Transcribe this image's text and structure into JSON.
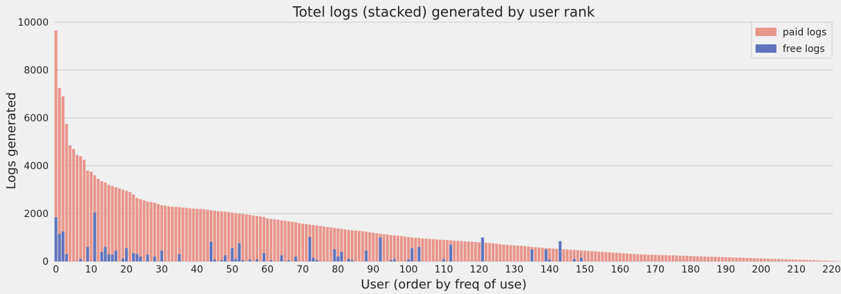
{
  "chart_data": {
    "type": "bar",
    "stacked": true,
    "title": "Totel logs (stacked) generated by user rank",
    "xlabel": "User (order by freq of use)",
    "ylabel": "Logs generated",
    "xlim": [
      0,
      220
    ],
    "ylim": [
      0,
      10000
    ],
    "xticks": [
      0,
      10,
      20,
      30,
      40,
      50,
      60,
      70,
      80,
      90,
      100,
      110,
      120,
      130,
      140,
      150,
      160,
      170,
      180,
      190,
      200,
      210,
      220
    ],
    "yticks": [
      0,
      2000,
      4000,
      6000,
      8000,
      10000
    ],
    "grid": true,
    "legend_position": "top-right",
    "colors": {
      "paid": "#e8958a",
      "free": "#5f74bd"
    },
    "series": [
      {
        "key": "paid",
        "name": "paid logs",
        "totals": [
          9650,
          7250,
          6900,
          5750,
          4850,
          4700,
          4450,
          4400,
          4250,
          3800,
          3750,
          3600,
          3450,
          3350,
          3300,
          3200,
          3150,
          3100,
          3050,
          3000,
          2950,
          2900,
          2800,
          2650,
          2600,
          2550,
          2500,
          2480,
          2450,
          2400,
          2350,
          2330,
          2300,
          2290,
          2280,
          2270,
          2250,
          2240,
          2220,
          2210,
          2200,
          2190,
          2180,
          2160,
          2140,
          2120,
          2100,
          2090,
          2080,
          2060,
          2040,
          2020,
          2000,
          1980,
          1960,
          1940,
          1920,
          1900,
          1880,
          1860,
          1800,
          1780,
          1760,
          1740,
          1720,
          1700,
          1680,
          1660,
          1640,
          1600,
          1580,
          1560,
          1540,
          1520,
          1500,
          1480,
          1460,
          1440,
          1420,
          1400,
          1380,
          1360,
          1340,
          1320,
          1300,
          1290,
          1280,
          1260,
          1240,
          1220,
          1200,
          1180,
          1160,
          1140,
          1120,
          1100,
          1090,
          1080,
          1060,
          1040,
          1020,
          1000,
          990,
          980,
          960,
          950,
          940,
          930,
          920,
          910,
          900,
          890,
          880,
          870,
          860,
          850,
          840,
          830,
          820,
          810,
          800,
          790,
          780,
          770,
          760,
          740,
          720,
          700,
          690,
          680,
          670,
          660,
          650,
          640,
          620,
          600,
          590,
          580,
          570,
          560,
          550,
          540,
          530,
          520,
          510,
          500,
          490,
          480,
          470,
          460,
          450,
          440,
          430,
          420,
          410,
          400,
          390,
          380,
          370,
          360,
          350,
          340,
          330,
          320,
          310,
          300,
          295,
          290,
          285,
          280,
          275,
          270,
          265,
          260,
          255,
          250,
          245,
          240,
          235,
          230,
          225,
          220,
          215,
          210,
          205,
          200,
          195,
          190,
          185,
          180,
          175,
          170,
          165,
          160,
          155,
          150,
          145,
          140,
          135,
          130,
          125,
          120,
          115,
          110,
          105,
          100,
          95,
          90,
          85,
          80,
          75,
          70,
          65,
          60,
          55,
          50,
          45,
          40,
          35,
          30,
          25,
          20,
          15,
          10
        ]
      },
      {
        "key": "free",
        "name": "free logs",
        "values": [
          1850,
          1150,
          1250,
          300,
          0,
          0,
          0,
          100,
          0,
          600,
          0,
          2050,
          0,
          400,
          600,
          300,
          280,
          450,
          0,
          120,
          550,
          0,
          350,
          300,
          200,
          0,
          280,
          0,
          200,
          0,
          450,
          0,
          0,
          0,
          0,
          300,
          0,
          0,
          0,
          0,
          0,
          0,
          0,
          0,
          820,
          80,
          0,
          50,
          250,
          0,
          550,
          100,
          750,
          50,
          0,
          80,
          0,
          80,
          0,
          350,
          0,
          50,
          0,
          0,
          250,
          0,
          50,
          0,
          200,
          0,
          0,
          0,
          1020,
          150,
          50,
          0,
          0,
          0,
          0,
          500,
          200,
          400,
          0,
          100,
          50,
          0,
          0,
          0,
          450,
          0,
          0,
          0,
          1000,
          0,
          0,
          50,
          100,
          0,
          0,
          0,
          80,
          550,
          0,
          600,
          0,
          0,
          0,
          0,
          0,
          0,
          100,
          0,
          700,
          0,
          0,
          0,
          0,
          0,
          0,
          0,
          0,
          1000,
          0,
          0,
          0,
          0,
          0,
          0,
          0,
          0,
          0,
          0,
          0,
          0,
          0,
          500,
          0,
          0,
          0,
          500,
          80,
          0,
          0,
          850,
          0,
          0,
          0,
          100,
          0,
          150,
          0,
          0,
          0,
          0,
          0,
          0,
          0,
          0,
          0,
          0,
          0,
          0,
          0,
          0,
          0,
          0,
          0,
          0,
          0,
          0,
          0,
          0,
          0,
          0,
          0,
          0,
          0,
          0,
          0,
          0,
          0,
          0,
          0,
          0,
          0,
          0,
          0,
          0,
          0,
          0,
          0,
          0,
          0,
          0,
          0,
          0,
          0,
          0,
          0,
          0,
          0,
          0,
          0,
          0,
          0,
          0,
          0,
          0,
          0,
          0,
          0,
          0
        ]
      }
    ]
  }
}
